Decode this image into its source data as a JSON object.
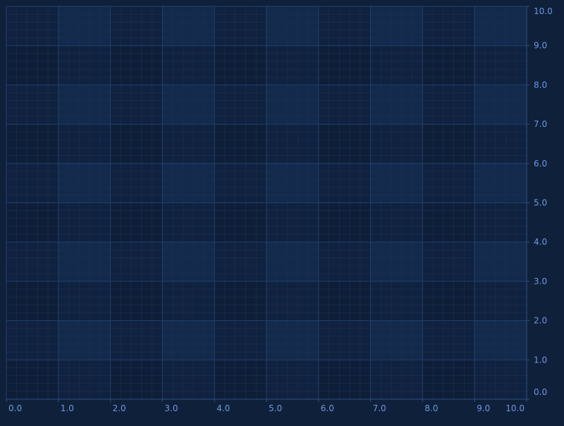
{
  "chart_data": {
    "type": "scatter",
    "title": "",
    "xlabel": "",
    "ylabel": "",
    "xlim": [
      0,
      10
    ],
    "ylim": [
      0,
      10
    ],
    "x_ticks": [
      "0.0",
      "1.0",
      "2.0",
      "3.0",
      "4.0",
      "5.0",
      "6.0",
      "7.0",
      "8.0",
      "9.0",
      "10.0"
    ],
    "y_ticks": [
      "0.0",
      "1.0",
      "2.0",
      "3.0",
      "4.0",
      "5.0",
      "6.0",
      "7.0",
      "8.0",
      "9.0",
      "10.0"
    ],
    "y_axis_side": "right",
    "grid": true,
    "minor_grid": true,
    "series": []
  },
  "colors": {
    "background": "#0f203b",
    "band_light": "#132a4d",
    "band_mid": "#10223f",
    "band_dark": "#0e1e38",
    "major_grid": "#21406e",
    "minor_grid": "#1a3054",
    "axis_line": "#2c4f86",
    "tick_label": "#6e98dc"
  }
}
